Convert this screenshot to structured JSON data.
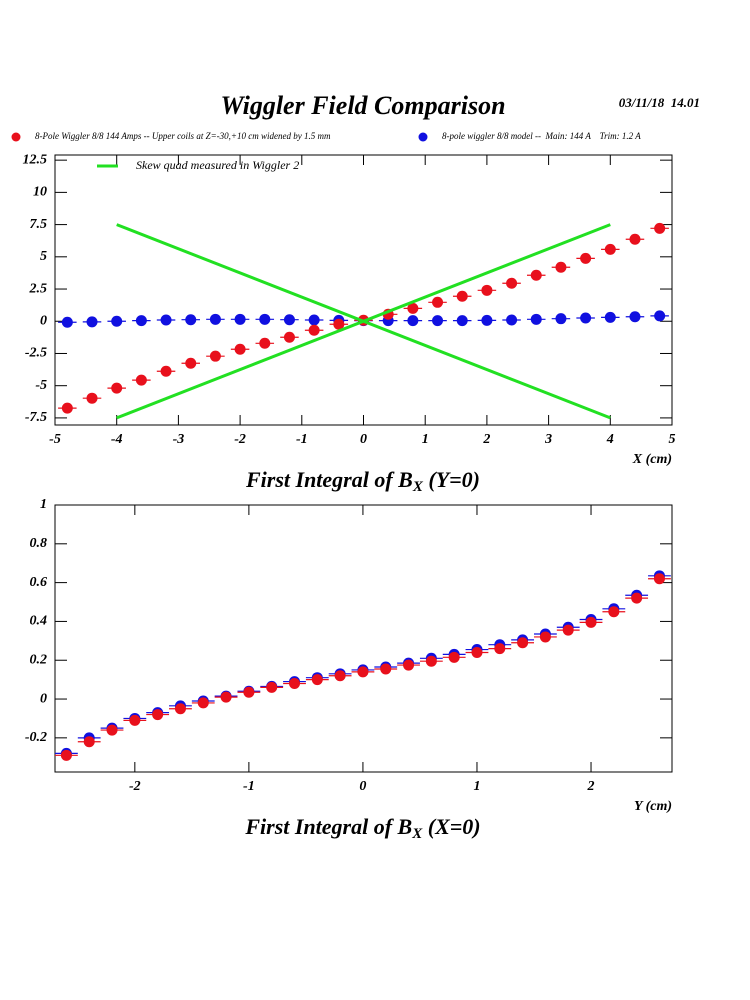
{
  "header": {
    "title": "Wiggler Field Comparison",
    "datetime": "03/11/18  14.01"
  },
  "chart_data": [
    {
      "type": "scatter",
      "title": {
        "main": "First Integral of B",
        "sub": "X",
        "tail": " (Y=0)"
      },
      "x_label": "X (cm)",
      "xlim": [
        -5,
        5
      ],
      "xticks": [
        -5,
        -4,
        -3,
        -2,
        -1,
        0,
        1,
        2,
        3,
        4,
        5
      ],
      "ylim": [
        -8.05,
        12.9
      ],
      "yticks": [
        -7.5,
        -5,
        -2.5,
        0,
        2.5,
        5,
        7.5,
        10,
        12.5
      ],
      "series": [
        {
          "name": "8-Pole Wiggler 8/8 144 Amps -- Upper coils at Z=-30,+10 cm widened by 1.5 mm",
          "color": "#e8101c",
          "xerr": 0.15,
          "x": [
            -4.8,
            -4.4,
            -4.0,
            -3.6,
            -3.2,
            -2.8,
            -2.4,
            -2.0,
            -1.6,
            -1.2,
            -0.8,
            -0.4,
            0,
            0.4,
            0.8,
            1.2,
            1.6,
            2.0,
            2.4,
            2.8,
            3.2,
            3.6,
            4.0,
            4.4,
            4.8
          ],
          "values": [
            -6.74,
            -5.97,
            -5.19,
            -4.57,
            -3.88,
            -3.26,
            -2.71,
            -2.17,
            -1.71,
            -1.24,
            -0.7,
            -0.23,
            0.08,
            0.54,
            1.0,
            1.47,
            1.94,
            2.4,
            2.95,
            3.57,
            4.19,
            4.88,
            5.58,
            6.36,
            7.21
          ]
        },
        {
          "name": "8-pole wiggler 8/8 model --  Main: 144 A    Trim: 1.2 A",
          "color": "#1010e0",
          "xerr": 0.15,
          "x": [
            -4.8,
            -4.4,
            -4.0,
            -3.6,
            -3.2,
            -2.8,
            -2.4,
            -2.0,
            -1.6,
            -1.2,
            -0.8,
            -0.4,
            0,
            0.4,
            0.8,
            1.2,
            1.6,
            2.0,
            2.4,
            2.8,
            3.2,
            3.6,
            4.0,
            4.4,
            4.8
          ],
          "values": [
            -0.08,
            -0.05,
            0,
            0.05,
            0.1,
            0.12,
            0.15,
            0.15,
            0.15,
            0.12,
            0.1,
            0.07,
            0.05,
            0.05,
            0.05,
            0.05,
            0.05,
            0.07,
            0.1,
            0.15,
            0.2,
            0.25,
            0.3,
            0.35,
            0.42
          ]
        },
        {
          "name": "Skew quad measured in Wiggler 2",
          "color": "#22e022",
          "style": "line",
          "x": [
            -4,
            4
          ],
          "values": [
            7.5,
            -7.5
          ]
        },
        {
          "color": "#22e022",
          "style": "line",
          "x": [
            -4,
            4
          ],
          "values": [
            -7.5,
            7.5
          ]
        }
      ]
    },
    {
      "type": "scatter",
      "title": {
        "main": "First Integral of B",
        "sub": "X",
        "tail": " (X=0)"
      },
      "x_label": "Y (cm)",
      "xlim": [
        -2.7,
        2.71
      ],
      "xticks": [
        -2,
        -1,
        0,
        1,
        2
      ],
      "ylim": [
        -0.376,
        1
      ],
      "yticks": [
        -0.2,
        0,
        0.2,
        0.4,
        0.6,
        0.8,
        1
      ],
      "series": [
        {
          "color": "#e8101c",
          "xerr": 0.1,
          "x": [
            -2.6,
            -2.4,
            -2.2,
            -2.0,
            -1.8,
            -1.6,
            -1.4,
            -1.2,
            -1.0,
            -0.8,
            -0.6,
            -0.4,
            -0.2,
            0,
            0.2,
            0.4,
            0.6,
            0.8,
            1.0,
            1.2,
            1.4,
            1.6,
            1.8,
            2.0,
            2.2,
            2.4,
            2.6
          ],
          "values": [
            -0.29,
            -0.22,
            -0.16,
            -0.11,
            -0.08,
            -0.05,
            -0.02,
            0.01,
            0.035,
            0.06,
            0.08,
            0.1,
            0.12,
            0.14,
            0.155,
            0.175,
            0.195,
            0.215,
            0.24,
            0.26,
            0.29,
            0.32,
            0.355,
            0.395,
            0.45,
            0.52,
            0.62
          ]
        },
        {
          "color": "#1010e0",
          "xerr": 0.1,
          "x": [
            -2.6,
            -2.4,
            -2.2,
            -2.0,
            -1.8,
            -1.6,
            -1.4,
            -1.2,
            -1.0,
            -0.8,
            -0.6,
            -0.4,
            -0.2,
            0,
            0.2,
            0.4,
            0.6,
            0.8,
            1.0,
            1.2,
            1.4,
            1.6,
            1.8,
            2.0,
            2.2,
            2.4,
            2.6
          ],
          "values": [
            -0.28,
            -0.2,
            -0.15,
            -0.1,
            -0.07,
            -0.035,
            -0.01,
            0.015,
            0.04,
            0.065,
            0.09,
            0.11,
            0.13,
            0.15,
            0.165,
            0.185,
            0.21,
            0.23,
            0.255,
            0.28,
            0.305,
            0.335,
            0.37,
            0.41,
            0.465,
            0.535,
            0.635
          ]
        }
      ]
    }
  ]
}
